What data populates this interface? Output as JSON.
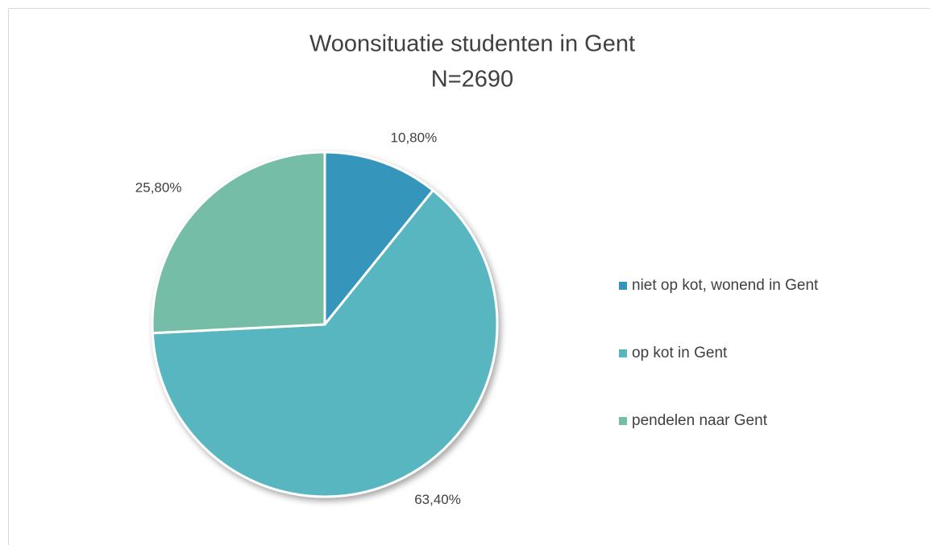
{
  "chart_data": {
    "type": "pie",
    "title": "Woonsituatie studenten in Gent",
    "subtitle": "N=2690",
    "categories": [
      "niet op kot, wonend in Gent",
      "op kot in Gent",
      "pendelen naar Gent"
    ],
    "values": [
      10.8,
      63.4,
      25.8
    ],
    "value_labels": [
      "10,80%",
      "63,40%",
      "25,80%"
    ],
    "colors": [
      "#3595ba",
      "#58b6c0",
      "#75bda7"
    ],
    "legend": "right"
  }
}
